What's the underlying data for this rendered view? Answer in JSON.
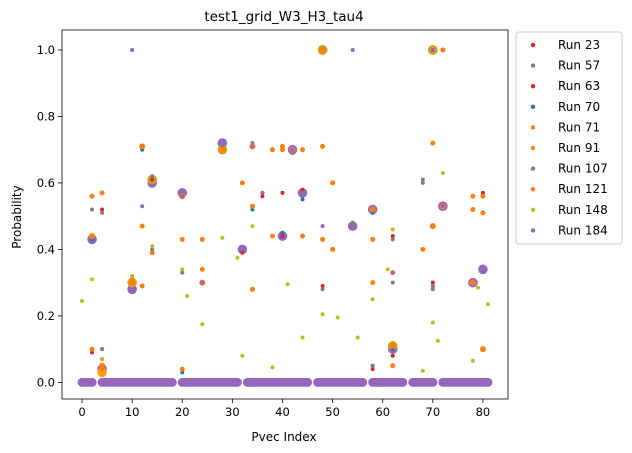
{
  "chart_data": {
    "type": "scatter",
    "title": "test1_grid_W3_H3_tau4",
    "xlabel": "Pvec Index",
    "ylabel": "Probability",
    "xlim": [
      -4,
      85
    ],
    "ylim": [
      -0.05,
      1.06
    ],
    "xticks": [
      0,
      10,
      20,
      30,
      40,
      50,
      60,
      70,
      80
    ],
    "yticks": [
      0.0,
      0.2,
      0.4,
      0.6,
      0.8,
      1.0
    ],
    "ytick_labels": [
      "0.0",
      "0.2",
      "0.4",
      "0.6",
      "0.8",
      "1.0"
    ],
    "legend_position": "outside-right",
    "series": [
      {
        "name": "Run 23",
        "color": "#d62728",
        "marker_size": 2,
        "x": [
          2,
          4,
          12,
          14,
          36,
          40,
          42,
          44,
          58,
          62,
          70,
          78,
          80
        ],
        "y": [
          0.1,
          0.52,
          0.71,
          0.61,
          0.56,
          0.57,
          0.7,
          0.58,
          0.05,
          0.44,
          0.3,
          0.3,
          0.57
        ]
      },
      {
        "name": "Run 57",
        "color": "#7f7f7f",
        "marker_size": 2,
        "x": [
          2,
          4,
          12,
          14,
          20,
          28,
          34,
          42,
          44,
          54,
          62,
          68,
          70,
          80
        ],
        "y": [
          0.52,
          0.51,
          0.7,
          0.62,
          0.57,
          0.71,
          0.72,
          0.69,
          0.56,
          0.47,
          0.43,
          0.61,
          0.28,
          0.56
        ]
      },
      {
        "name": "Run 63",
        "color": "#d62728",
        "marker_size": 2,
        "x": [
          2,
          4,
          20,
          32,
          36,
          40,
          48,
          58,
          62,
          70
        ],
        "y": [
          0.09,
          0.07,
          0.04,
          0.39,
          0.57,
          0.44,
          0.29,
          0.04,
          0.08,
          0.29
        ]
      },
      {
        "name": "Run 70",
        "color": "#1f77b4",
        "marker_size": 2,
        "x": [
          2,
          4,
          12,
          20,
          34,
          40,
          44,
          58,
          62
        ],
        "y": [
          0.43,
          0.1,
          0.7,
          0.03,
          0.52,
          0.45,
          0.55,
          0.51,
          0.1
        ]
      },
      {
        "name": "Run 71",
        "color": "#ff7f0e",
        "marker_size": 2.5,
        "x": [
          2,
          4,
          12,
          14,
          20,
          24,
          28,
          32,
          34,
          38,
          40,
          42,
          44,
          48,
          50,
          58,
          62,
          70,
          72,
          78,
          80
        ],
        "y": [
          0.56,
          0.57,
          0.47,
          0.39,
          0.43,
          0.43,
          0.7,
          0.6,
          0.53,
          0.7,
          0.7,
          0.7,
          0.7,
          0.71,
          0.6,
          0.43,
          0.33,
          0.72,
          1.0,
          0.56,
          0.56
        ]
      },
      {
        "name": "Run 91",
        "color": "#ff7f0e",
        "marker_size": 2.5,
        "x": [
          2,
          4,
          10,
          12,
          20,
          24,
          34,
          38,
          40,
          44,
          48,
          50,
          58,
          62,
          68,
          78,
          80
        ],
        "y": [
          0.1,
          0.04,
          0.31,
          0.29,
          0.04,
          0.34,
          0.28,
          0.44,
          0.71,
          0.44,
          0.43,
          0.4,
          0.3,
          0.05,
          0.4,
          0.52,
          0.51
        ]
      },
      {
        "name": "Run 107",
        "color": "#7f7f7f",
        "marker_size": 2,
        "x": [
          4,
          10,
          14,
          20,
          42,
          48,
          54,
          58,
          62,
          70
        ],
        "y": [
          0.1,
          0.3,
          0.4,
          0.33,
          0.69,
          0.28,
          0.48,
          0.05,
          0.3,
          0.29
        ]
      },
      {
        "name": "Run 121",
        "color": "#ff7f0e",
        "marker_size": 3,
        "x": [
          2,
          4,
          10,
          12,
          20,
          24,
          28,
          34,
          42,
          48,
          58,
          62,
          70,
          72,
          78,
          80
        ],
        "y": [
          0.44,
          0.05,
          0.3,
          0.71,
          0.56,
          0.3,
          0.7,
          0.71,
          0.7,
          1.0,
          0.52,
          0.11,
          0.47,
          0.53,
          0.3,
          0.1
        ]
      },
      {
        "name": "Run 148",
        "color": "#bcbd22",
        "marker_size": 2,
        "x": [
          0,
          2,
          4,
          10,
          14,
          20,
          21,
          24,
          28,
          31,
          32,
          34,
          38,
          41,
          44,
          48,
          51,
          55,
          58,
          61,
          62,
          68,
          70,
          71,
          72,
          78,
          79,
          81
        ],
        "y": [
          0.245,
          0.31,
          0.07,
          0.32,
          0.41,
          0.34,
          0.26,
          0.175,
          0.435,
          0.375,
          0.08,
          0.47,
          0.045,
          0.295,
          0.135,
          0.205,
          0.195,
          0.135,
          0.25,
          0.34,
          0.46,
          0.035,
          0.18,
          0.125,
          0.63,
          0.065,
          0.285,
          0.235
        ]
      },
      {
        "name": "Run 184",
        "color": "#9467bd",
        "marker_size": 2,
        "x": [
          10,
          12,
          20,
          24,
          34,
          36,
          42,
          44,
          48,
          54,
          62,
          68,
          70,
          72
        ],
        "y": [
          1.0,
          0.53,
          0.56,
          0.3,
          0.71,
          0.57,
          0.7,
          0.57,
          0.47,
          1.0,
          0.33,
          0.6,
          1.0,
          0.53
        ]
      }
    ],
    "large_markers": [
      {
        "x": 2,
        "y": 0.43,
        "color": "#9467bd"
      },
      {
        "x": 4,
        "y": 0.04,
        "color": "#9467bd"
      },
      {
        "x": 4,
        "y": 0.03,
        "color": "#ff9d0e"
      },
      {
        "x": 10,
        "y": 0.28,
        "color": "#9467bd"
      },
      {
        "x": 10,
        "y": 0.3,
        "color": "#d4a017"
      },
      {
        "x": 14,
        "y": 0.6,
        "color": "#9467bd"
      },
      {
        "x": 14,
        "y": 0.61,
        "color": "#d4a017"
      },
      {
        "x": 20,
        "y": 0.57,
        "color": "#9467bd"
      },
      {
        "x": 28,
        "y": 0.72,
        "color": "#9467bd"
      },
      {
        "x": 28,
        "y": 0.7,
        "color": "#d4a017"
      },
      {
        "x": 32,
        "y": 0.4,
        "color": "#9467bd"
      },
      {
        "x": 40,
        "y": 0.44,
        "color": "#9467bd"
      },
      {
        "x": 42,
        "y": 0.7,
        "color": "#9467bd"
      },
      {
        "x": 44,
        "y": 0.57,
        "color": "#9467bd"
      },
      {
        "x": 48,
        "y": 1.0,
        "color": "#9467bd"
      },
      {
        "x": 48,
        "y": 1.0,
        "color": "#d4a017"
      },
      {
        "x": 54,
        "y": 0.47,
        "color": "#9467bd"
      },
      {
        "x": 58,
        "y": 0.52,
        "color": "#9467bd"
      },
      {
        "x": 62,
        "y": 0.1,
        "color": "#9467bd"
      },
      {
        "x": 62,
        "y": 0.11,
        "color": "#d4a017"
      },
      {
        "x": 70,
        "y": 1.0,
        "color": "#9467bd"
      },
      {
        "x": 70,
        "y": 1.0,
        "color": "#d4a017"
      },
      {
        "x": 72,
        "y": 0.53,
        "color": "#9467bd"
      },
      {
        "x": 78,
        "y": 0.3,
        "color": "#9467bd"
      },
      {
        "x": 80,
        "y": 0.34,
        "color": "#9467bd"
      }
    ],
    "zero_line": {
      "y": 0.0,
      "color": "#9467bd",
      "x_segments": [
        [
          0,
          2
        ],
        [
          4,
          18
        ],
        [
          20,
          31
        ],
        [
          33,
          45
        ],
        [
          47,
          56
        ],
        [
          58,
          64
        ],
        [
          66,
          70
        ],
        [
          72,
          81
        ]
      ]
    }
  }
}
